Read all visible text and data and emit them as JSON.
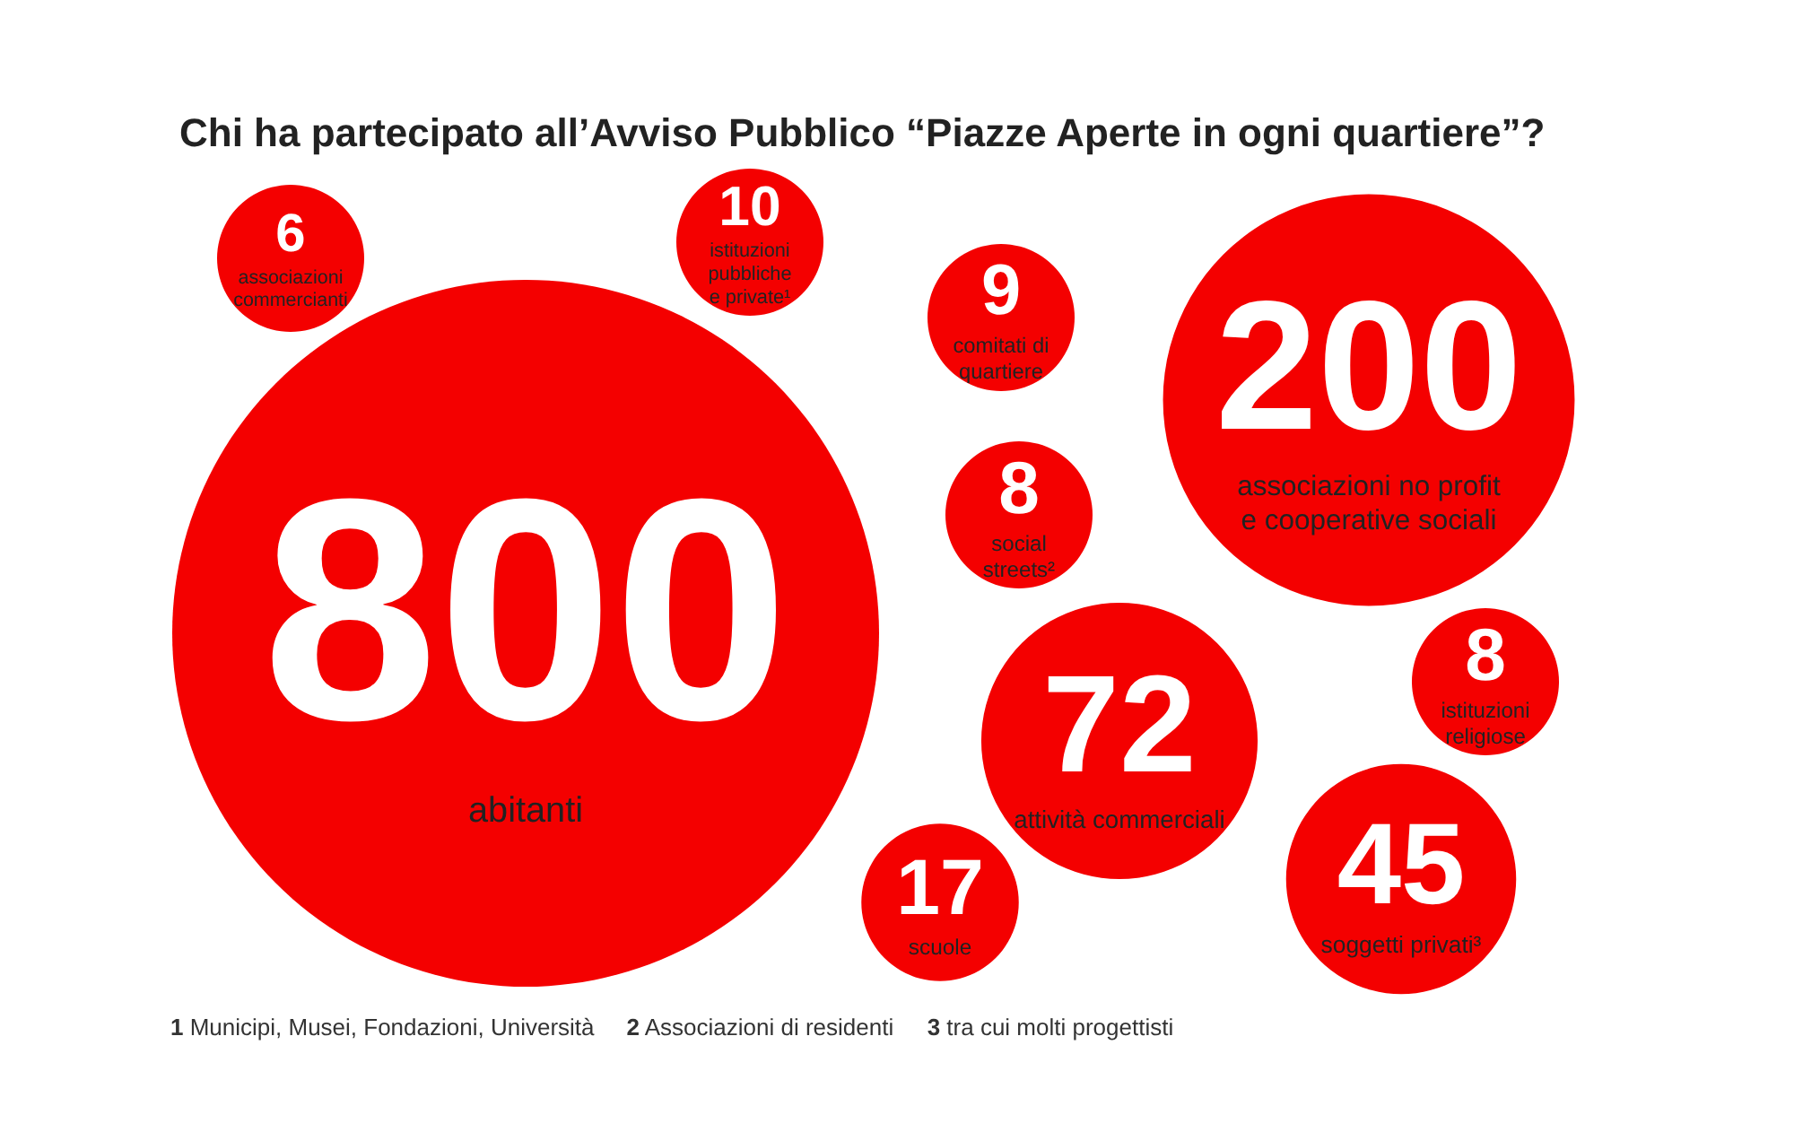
{
  "chart_data": {
    "type": "other",
    "title": "Chi ha partecipato all’Avviso Pubblico “Piazze Aperte in ogni quartiere”?",
    "categories": [
      "abitanti",
      "associazioni no profit e cooperative sociali",
      "attività commerciali",
      "soggetti privati³",
      "scuole",
      "istituzioni pubbliche e private¹",
      "comitati di quartiere",
      "social streets²",
      "istituzioni religiose",
      "associazioni commercianti"
    ],
    "values": [
      800,
      200,
      72,
      45,
      17,
      10,
      9,
      8,
      8,
      6
    ],
    "color": "#f40000",
    "data_labels": true,
    "annotations": [
      "1 Municipi, Musei, Fondazioni, Università",
      "2 Associazioni di residenti",
      "3 tra cui molti progettisti"
    ]
  }
}
